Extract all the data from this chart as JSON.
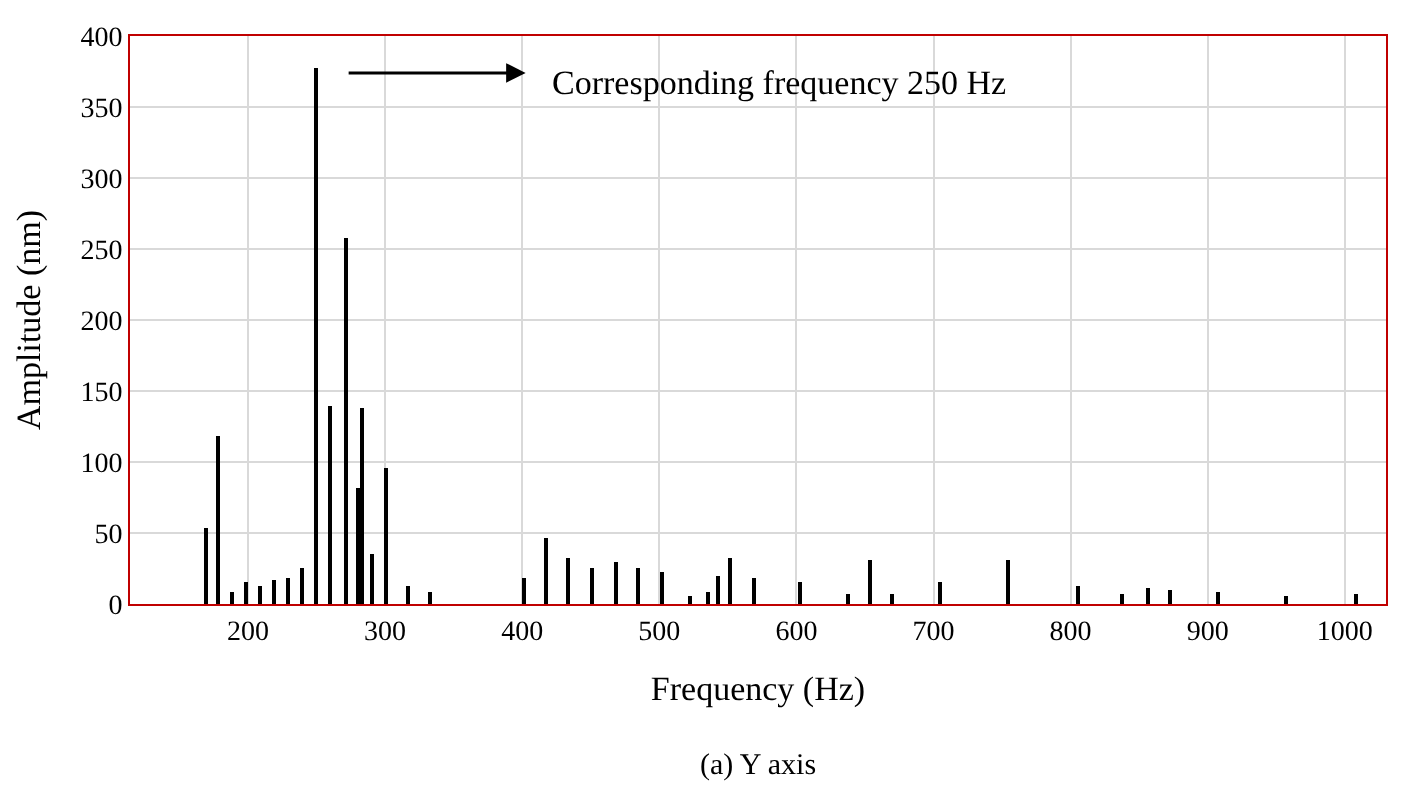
{
  "chart_data": {
    "type": "bar",
    "xlabel": "Frequency (Hz)",
    "ylabel": "Amplitude (nm)",
    "annotations": [
      "Corresponding frequency 250 Hz",
      "(a) Y axis"
    ],
    "x": [
      169,
      178,
      188,
      199,
      209,
      219,
      229,
      240,
      250,
      260,
      271,
      280,
      283,
      290,
      300,
      317,
      333,
      401,
      417,
      434,
      451,
      468,
      485,
      502,
      522,
      536,
      543,
      552,
      569,
      603,
      637,
      654,
      670,
      705,
      754,
      806,
      838,
      856,
      872,
      907,
      957,
      1008
    ],
    "series": [
      {
        "color": "#000000",
        "values": [
          54,
          119,
          9,
          16,
          12,
          17,
          19,
          25,
          378,
          140,
          258,
          81,
          138,
          35,
          96,
          13,
          8,
          18,
          46,
          32,
          26,
          30,
          26,
          23,
          5,
          8,
          20,
          32,
          18,
          16,
          7,
          31,
          7,
          15,
          31,
          13,
          7,
          11,
          10,
          8,
          5,
          7
        ]
      }
    ],
    "xlim": [
      114,
      1030
    ],
    "xticks": [
      200,
      300,
      400,
      500,
      600,
      700,
      800,
      900,
      1000
    ],
    "ylim": [
      0,
      400
    ],
    "yticks": [
      0,
      50,
      100,
      150,
      200,
      250,
      300,
      350,
      400
    ],
    "grid": true
  }
}
